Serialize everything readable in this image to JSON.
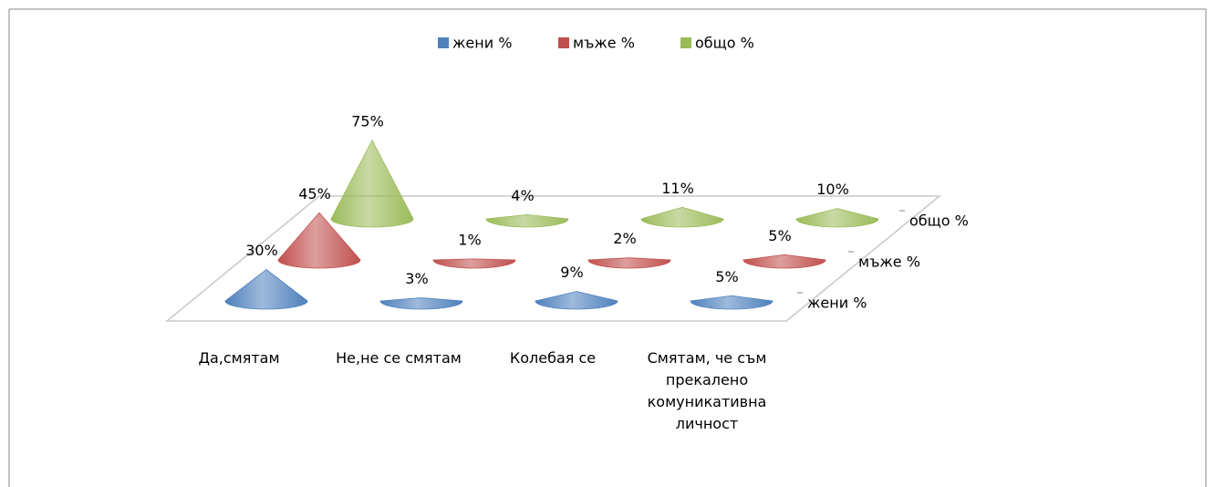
{
  "chart_data": {
    "type": "cone",
    "categories": [
      "Да,смятам",
      "Не,не се смятам",
      "Колебая се",
      "Смятам, че съм прекалено комуникативна личност"
    ],
    "series": [
      {
        "name": "жени %",
        "color": "#4f81bd",
        "values": [
          30,
          3,
          9,
          5
        ],
        "value_labels": [
          "30%",
          "3%",
          "9%",
          "5%"
        ]
      },
      {
        "name": "мъже %",
        "color": "#c0504d",
        "values": [
          45,
          1,
          2,
          5
        ],
        "value_labels": [
          "45%",
          "1%",
          "2%",
          "5%"
        ]
      },
      {
        "name": "общо %",
        "color": "#9bbb59",
        "values": [
          75,
          4,
          11,
          10
        ],
        "value_labels": [
          "75%",
          "4%",
          "11%",
          "10%"
        ]
      }
    ],
    "legend": "top"
  }
}
